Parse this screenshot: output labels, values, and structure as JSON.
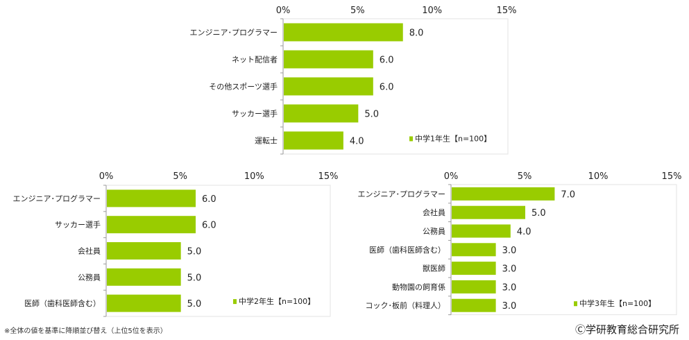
{
  "bar_color": "#99cc00",
  "footnote": "※全体の値を基準に降順並び替え（上位5位を表示）",
  "copyright": "Ⓒ学研教育総合研究所",
  "chart_data": [
    {
      "type": "bar",
      "orientation": "horizontal",
      "legend": "中学1年生【n=100】",
      "legend_position": "bottom-right",
      "xlim": [
        0,
        15
      ],
      "ticks": [
        "0%",
        "5%",
        "10%",
        "15%"
      ],
      "tick_values": [
        0,
        5,
        10,
        15
      ],
      "categories": [
        "エンジニア･プログラマー",
        "ネット配信者",
        "その他スポーツ選手",
        "サッカー選手",
        "運転士"
      ],
      "values": [
        8.0,
        6.0,
        6.0,
        5.0,
        4.0
      ],
      "value_labels": [
        "8.0",
        "6.0",
        "6.0",
        "5.0",
        "4.0"
      ]
    },
    {
      "type": "bar",
      "orientation": "horizontal",
      "legend": "中学2年生【n=100】",
      "legend_position": "bottom-right",
      "xlim": [
        0,
        15
      ],
      "ticks": [
        "0%",
        "5%",
        "10%",
        "15%"
      ],
      "tick_values": [
        0,
        5,
        10,
        15
      ],
      "categories": [
        "エンジニア･プログラマー",
        "サッカー選手",
        "会社員",
        "公務員",
        "医師（歯科医師含む）"
      ],
      "values": [
        6.0,
        6.0,
        5.0,
        5.0,
        5.0
      ],
      "value_labels": [
        "6.0",
        "6.0",
        "5.0",
        "5.0",
        "5.0"
      ]
    },
    {
      "type": "bar",
      "orientation": "horizontal",
      "legend": "中学3年生【n=100】",
      "legend_position": "bottom-right",
      "xlim": [
        0,
        15
      ],
      "ticks": [
        "0%",
        "5%",
        "10%",
        "15%"
      ],
      "tick_values": [
        0,
        5,
        10,
        15
      ],
      "categories": [
        "エンジニア･プログラマー",
        "会社員",
        "公務員",
        "医師（歯科医師含む）",
        "獣医師",
        "動物園の飼育係",
        "コック･板前（料理人）"
      ],
      "values": [
        7.0,
        5.0,
        4.0,
        3.0,
        3.0,
        3.0,
        3.0
      ],
      "value_labels": [
        "7.0",
        "5.0",
        "4.0",
        "3.0",
        "3.0",
        "3.0",
        "3.0"
      ]
    }
  ]
}
